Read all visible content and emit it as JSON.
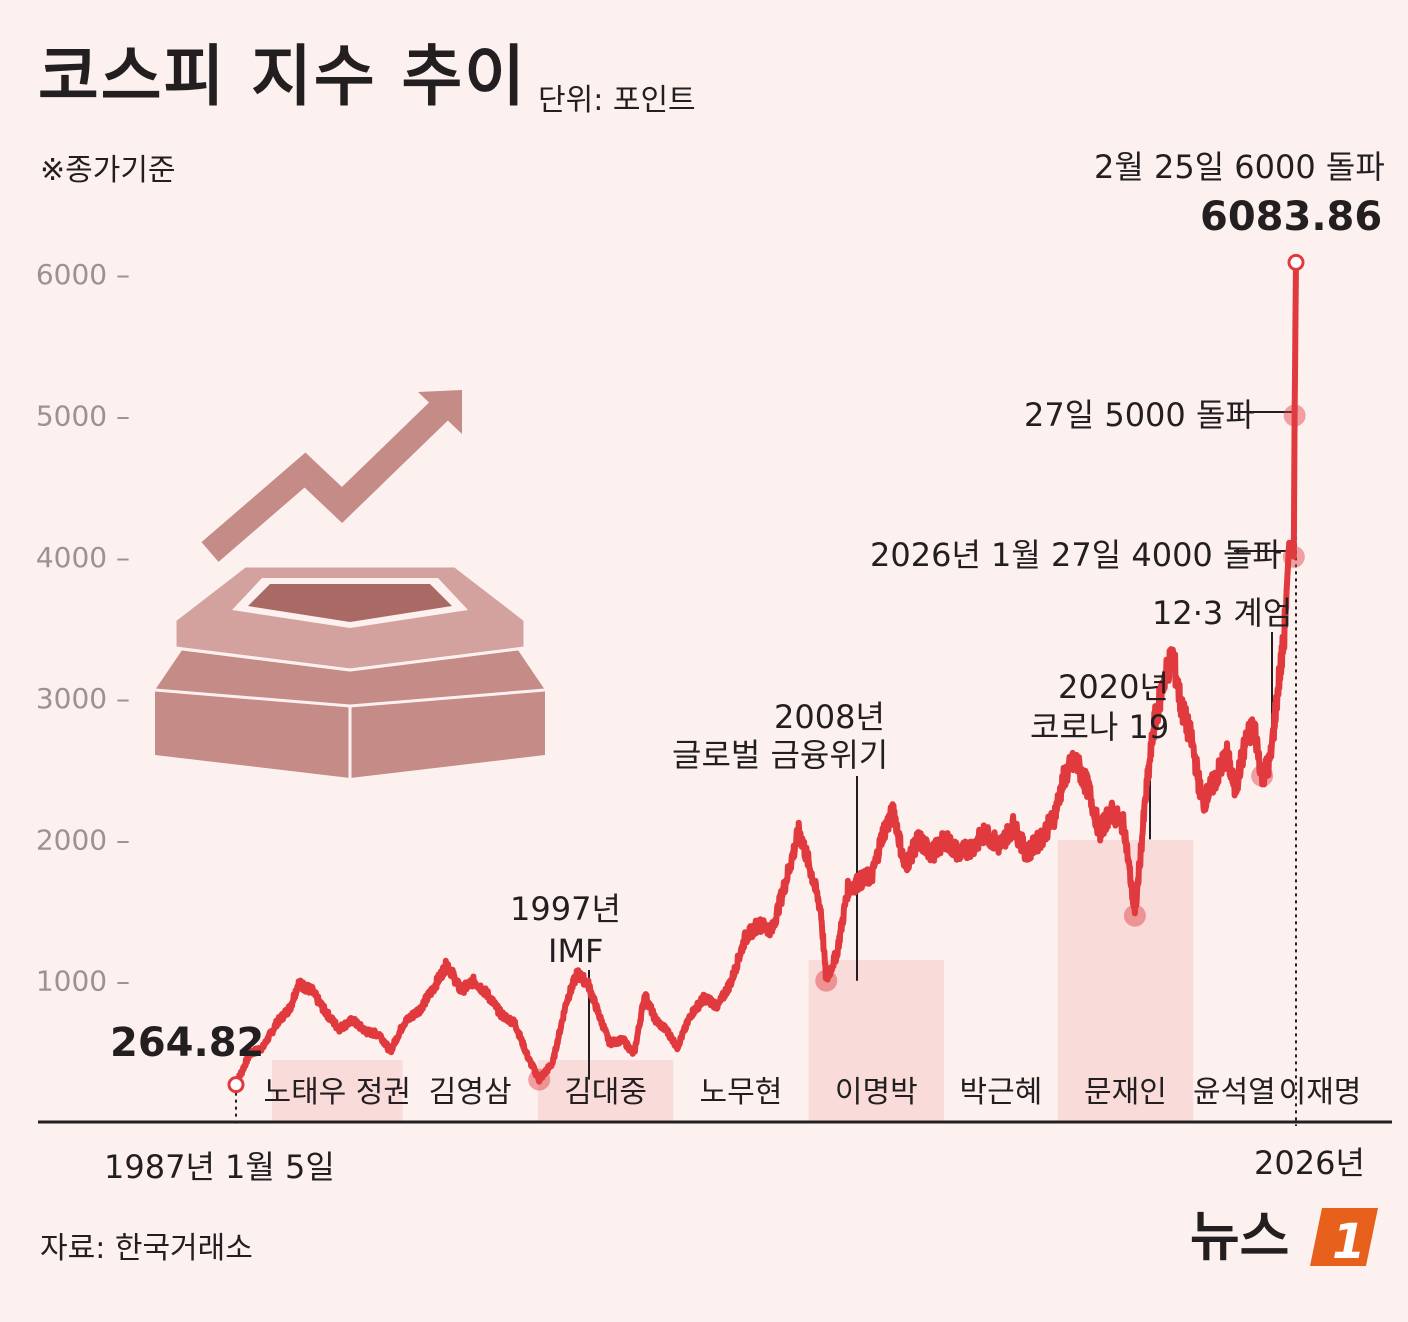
{
  "header": {
    "title": "코스피 지수 추이",
    "unit": "단위: 포인트",
    "note": "※종가기준"
  },
  "footer": {
    "source": "자료: 한국거래소",
    "logo_text": "뉴스",
    "logo_mark": "1"
  },
  "colors": {
    "line": "#e03a3e",
    "era_band": "#f9dcda",
    "background": "#fdf1f0",
    "illustration": "#c98e8a"
  },
  "chart_data": {
    "type": "line",
    "title": "코스피 지수 추이",
    "ylabel": "",
    "xlabel": "",
    "ylim": [
      0,
      6000
    ],
    "y_ticks": [
      "1000 –",
      "2000 –",
      "3000 –",
      "4000 –",
      "5000 –",
      "6000 –"
    ],
    "y_tick_values": [
      1000,
      2000,
      3000,
      4000,
      5000,
      6000
    ],
    "x_start_label": "1987년 1월 5일",
    "x_end_label": "2026년",
    "grid": false,
    "series": [
      {
        "values_by_year": [
          [
            1987.0,
            264.82
          ],
          [
            1987.5,
            480
          ],
          [
            1988.0,
            530
          ],
          [
            1988.5,
            700
          ],
          [
            1989.0,
            810
          ],
          [
            1989.3,
            980
          ],
          [
            1989.8,
            930
          ],
          [
            1990.3,
            780
          ],
          [
            1990.8,
            660
          ],
          [
            1991.3,
            720
          ],
          [
            1991.8,
            640
          ],
          [
            1992.3,
            620
          ],
          [
            1992.7,
            500
          ],
          [
            1993.2,
            700
          ],
          [
            1993.8,
            800
          ],
          [
            1994.3,
            950
          ],
          [
            1994.8,
            1120
          ],
          [
            1995.3,
            930
          ],
          [
            1995.8,
            1000
          ],
          [
            1996.3,
            900
          ],
          [
            1996.8,
            760
          ],
          [
            1997.3,
            700
          ],
          [
            1997.8,
            450
          ],
          [
            1998.2,
            300
          ],
          [
            1998.7,
            420
          ],
          [
            1999.2,
            850
          ],
          [
            1999.6,
            1050
          ],
          [
            2000.0,
            980
          ],
          [
            2000.4,
            760
          ],
          [
            2000.8,
            560
          ],
          [
            2001.3,
            580
          ],
          [
            2001.7,
            480
          ],
          [
            2002.1,
            900
          ],
          [
            2002.5,
            720
          ],
          [
            2002.9,
            650
          ],
          [
            2003.3,
            530
          ],
          [
            2003.8,
            760
          ],
          [
            2004.3,
            880
          ],
          [
            2004.8,
            820
          ],
          [
            2005.3,
            1000
          ],
          [
            2005.8,
            1300
          ],
          [
            2006.3,
            1400
          ],
          [
            2006.8,
            1360
          ],
          [
            2007.3,
            1700
          ],
          [
            2007.8,
            2060
          ],
          [
            2008.2,
            1800
          ],
          [
            2008.6,
            1500
          ],
          [
            2008.8,
            1000
          ],
          [
            2009.2,
            1200
          ],
          [
            2009.6,
            1650
          ],
          [
            2010.0,
            1700
          ],
          [
            2010.5,
            1750
          ],
          [
            2010.9,
            2050
          ],
          [
            2011.3,
            2200
          ],
          [
            2011.7,
            1800
          ],
          [
            2012.2,
            2000
          ],
          [
            2012.7,
            1900
          ],
          [
            2013.2,
            2000
          ],
          [
            2013.7,
            1900
          ],
          [
            2014.2,
            1950
          ],
          [
            2014.7,
            2050
          ],
          [
            2015.2,
            1950
          ],
          [
            2015.7,
            2100
          ],
          [
            2016.2,
            1900
          ],
          [
            2016.7,
            2000
          ],
          [
            2017.2,
            2150
          ],
          [
            2017.6,
            2450
          ],
          [
            2018.0,
            2560
          ],
          [
            2018.5,
            2350
          ],
          [
            2018.9,
            2050
          ],
          [
            2019.3,
            2200
          ],
          [
            2019.8,
            2100
          ],
          [
            2020.2,
            1460
          ],
          [
            2020.6,
            2300
          ],
          [
            2020.9,
            2800
          ],
          [
            2021.3,
            3150
          ],
          [
            2021.6,
            3300
          ],
          [
            2021.9,
            2950
          ],
          [
            2022.3,
            2700
          ],
          [
            2022.7,
            2250
          ],
          [
            2023.1,
            2400
          ],
          [
            2023.6,
            2600
          ],
          [
            2023.9,
            2350
          ],
          [
            2024.3,
            2700
          ],
          [
            2024.6,
            2800
          ],
          [
            2024.9,
            2450
          ],
          [
            2025.2,
            2550
          ],
          [
            2025.5,
            3100
          ],
          [
            2025.7,
            3400
          ],
          [
            2025.9,
            4100
          ],
          [
            2026.07,
            4000
          ],
          [
            2026.1,
            5000
          ],
          [
            2026.15,
            6083.86
          ]
        ]
      }
    ],
    "eras": [
      {
        "label": "노태우 정권",
        "from": 1988.15,
        "to": 1993.15,
        "shaded": true
      },
      {
        "label": "김영삼",
        "from": 1993.15,
        "to": 1998.15,
        "shaded": false
      },
      {
        "label": "김대중",
        "from": 1998.15,
        "to": 2003.15,
        "shaded": true
      },
      {
        "label": "노무현",
        "from": 2003.15,
        "to": 2008.15,
        "shaded": false
      },
      {
        "label": "이명박",
        "from": 2008.15,
        "to": 2013.15,
        "shaded": true
      },
      {
        "label": "박근혜",
        "from": 2013.15,
        "to": 2017.35,
        "shaded": false
      },
      {
        "label": "문재인",
        "from": 2017.35,
        "to": 2022.35,
        "shaded": true
      },
      {
        "label": "윤석열",
        "from": 2022.35,
        "to": 2025.4,
        "shaded": false
      },
      {
        "label": "이재명",
        "from": 2025.4,
        "to": 2029.0,
        "shaded": false
      }
    ],
    "annotations": {
      "start_value": "264.82",
      "imf_year": "1997년",
      "imf_label": "IMF",
      "crisis_year": "2008년",
      "crisis_label": "글로벌 금융위기",
      "covid_year": "2020년",
      "covid_label": "코로나 19",
      "martial_law": "12·3 계엄",
      "break_4000": "2026년 1월 27일 4000 돌파",
      "break_5000": "27일 5000 돌파",
      "break_6000": "2월 25일 6000 돌파",
      "peak_value": "6083.86"
    }
  }
}
